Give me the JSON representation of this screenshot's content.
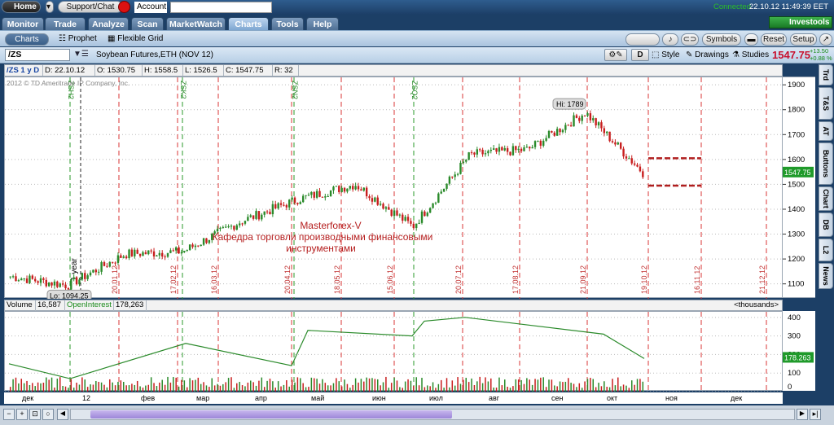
{
  "topbar": {
    "home": "Home",
    "support": "Support/Chat",
    "account_label": "Account",
    "status": "Connected",
    "clock": "22.10.12 11:49:39 EET",
    "brand": "Investools"
  },
  "tabs": [
    "Monitor",
    "Trade",
    "Analyze",
    "Scan",
    "MarketWatch",
    "Charts",
    "Tools",
    "Help"
  ],
  "active_tab": "Charts",
  "subbar": {
    "charts": "Charts",
    "prophet": "Prophet",
    "flexible_grid": "Flexible Grid",
    "symbols": "Symbols",
    "reset": "Reset",
    "setup": "Setup"
  },
  "chartbar": {
    "symbol": "/ZS",
    "description": "Soybean Futures,ETH (NOV 12)",
    "d_label": "D",
    "style": "Style",
    "drawings": "Drawings",
    "studies": "Studies",
    "last": "1547.75",
    "change": "+13.50",
    "change_pct": "+0.88 %"
  },
  "infobar": {
    "period": "/ZS 1 y D",
    "date": "D: 22.10.12",
    "open": "O: 1530.75",
    "high": "H: 1558.5",
    "low": "L: 1526.5",
    "close": "C: 1547.75",
    "range": "R: 32"
  },
  "copyright": "2012 © TD Ameritrade IP Company, Inc.",
  "price_axis": {
    "ticks": [
      1900,
      1800,
      1700,
      1600,
      1500,
      1400,
      1300,
      1200,
      1100
    ],
    "current_label": "1547.75"
  },
  "annotations": {
    "hi": "Hi: 1789",
    "lo": "Lo: 1094.25",
    "year": "1 year",
    "watermark_line1": "Masterforex-V",
    "watermark_line2": "Кафедра торговли производными финансовыми",
    "watermark_line3": "инструментами"
  },
  "vlines_red": [
    "20.01.12",
    "17.02.12",
    "16.03.12",
    "20.04.12",
    "18.05.12",
    "15.06.12",
    "20.07.12",
    "17.08.12",
    "21.09.12",
    "19.10.12",
    "16.11.12",
    "21.12.12"
  ],
  "vlines_green": [
    "ZSH2",
    "ZSK2",
    "ZSN2",
    "ZSQ2"
  ],
  "volume": {
    "label": "Volume",
    "value": "16,587",
    "oi_label": "OpenInterest",
    "oi_value": "178,263",
    "units": "<thousands>",
    "ticks": [
      400,
      300,
      200,
      100,
      0
    ],
    "oi_current": "178.263"
  },
  "xaxis": [
    "дек",
    "12",
    "фев",
    "мар",
    "апр",
    "май",
    "июн",
    "июл",
    "авг",
    "сен",
    "окт",
    "ноя",
    "дек"
  ],
  "sidetabs": [
    "Trd",
    "T&S",
    "AT",
    "Buttons",
    "Chart",
    "DB",
    "L2",
    "News"
  ],
  "chart_data": {
    "type": "candlestick",
    "title": "/ZS 1 y D",
    "ylim": [
      1040,
      1930
    ],
    "key_points": [
      {
        "x": "Nov 2011",
        "y": 1130
      },
      {
        "x": "Dec 2011",
        "y": 1094.25
      },
      {
        "x": "Jan 2012",
        "y": 1220
      },
      {
        "x": "Feb 2012",
        "y": 1230
      },
      {
        "x": "Mar 2012",
        "y": 1350
      },
      {
        "x": "Apr 2012",
        "y": 1440
      },
      {
        "x": "May 2012",
        "y": 1500
      },
      {
        "x": "Jun 2012",
        "y": 1330
      },
      {
        "x": "Jul 2012",
        "y": 1620
      },
      {
        "x": "Aug 2012",
        "y": 1640
      },
      {
        "x": "Sep 2012",
        "y": 1789
      },
      {
        "x": "Oct 2012",
        "y": 1547.75
      }
    ],
    "volume_ylim": [
      0,
      430
    ],
    "open_interest_key_points": [
      {
        "x": "Nov 2011",
        "y": 150
      },
      {
        "x": "Jan 2012",
        "y": 70
      },
      {
        "x": "Mar 2012",
        "y": 260
      },
      {
        "x": "Apr 2012",
        "y": 140
      },
      {
        "x": "May 2012",
        "y": 330
      },
      {
        "x": "Jun 2012",
        "y": 300
      },
      {
        "x": "Jul 2012",
        "y": 380
      },
      {
        "x": "Aug 2012",
        "y": 400
      },
      {
        "x": "Oct 2012",
        "y": 310
      },
      {
        "x": "Oct 22 2012",
        "y": 178.263
      }
    ]
  }
}
